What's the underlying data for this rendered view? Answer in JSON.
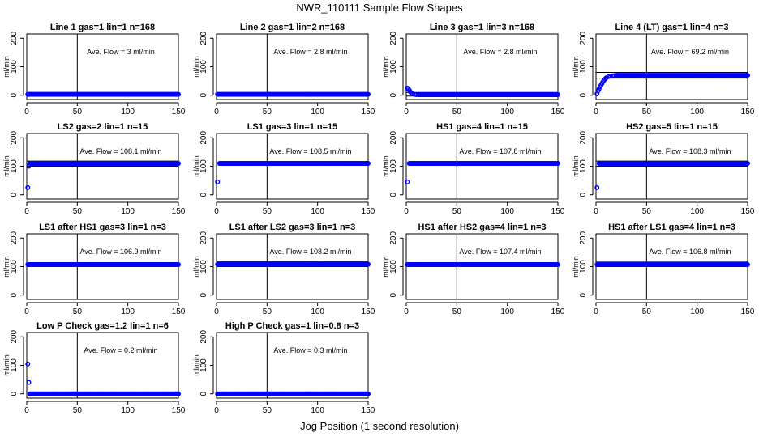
{
  "figure": {
    "title": "NWR_110111  Sample Flow Shapes",
    "xlabel": "Jog Position (1 second resolution)"
  },
  "colors": {
    "points": "#0000ff",
    "axes": "#000000"
  },
  "chart_data": [
    {
      "type": "scatter",
      "title": "Line 1 gas=1 lin=1 n=168",
      "annotation": "Ave. Flow =  3  ml/min",
      "xlabel": "",
      "ylabel": "ml/min",
      "xlim": [
        0,
        150
      ],
      "ylim": [
        -15,
        215
      ],
      "xticks": [
        0,
        50,
        100,
        150
      ],
      "yticks": [
        0,
        100,
        200
      ],
      "vline": 50,
      "hlines": [],
      "series": [
        {
          "name": "",
          "x": [
            1,
            150
          ],
          "y": [
            3,
            3
          ]
        }
      ]
    },
    {
      "type": "scatter",
      "title": "Line 2 gas=1 lin=2 n=168",
      "annotation": "Ave. Flow =  2.8  ml/min",
      "xlabel": "",
      "ylabel": "ml/min",
      "xlim": [
        0,
        150
      ],
      "ylim": [
        -15,
        215
      ],
      "xticks": [
        0,
        50,
        100,
        150
      ],
      "yticks": [
        0,
        100,
        200
      ],
      "vline": 50,
      "hlines": [],
      "series": [
        {
          "name": "",
          "x": [
            1,
            150
          ],
          "y": [
            3,
            3
          ]
        }
      ]
    },
    {
      "type": "scatter",
      "title": "Line 3 gas=1 lin=3 n=168",
      "annotation": "Ave. Flow =  2.8  ml/min",
      "xlabel": "",
      "ylabel": "ml/min",
      "xlim": [
        0,
        150
      ],
      "ylim": [
        -15,
        215
      ],
      "xticks": [
        0,
        50,
        100,
        150
      ],
      "yticks": [
        0,
        100,
        200
      ],
      "vline": 50,
      "hlines": [
        10,
        -3
      ],
      "series": [
        {
          "name": "",
          "x": [
            1,
            2,
            3,
            4,
            5,
            6,
            8,
            10,
            12,
            150
          ],
          "y": [
            25,
            22,
            18,
            12,
            8,
            5,
            3,
            2,
            2,
            2
          ]
        }
      ]
    },
    {
      "type": "scatter",
      "title": "Line 4 (LT) gas=1 lin=4 n=3",
      "annotation": "Ave. Flow =  69.2  ml/min",
      "xlabel": "",
      "ylabel": "ml/min",
      "xlim": [
        0,
        150
      ],
      "ylim": [
        -15,
        215
      ],
      "xticks": [
        0,
        50,
        100,
        150
      ],
      "yticks": [
        0,
        100,
        200
      ],
      "vline": 50,
      "hlines": [
        80,
        60
      ],
      "series": [
        {
          "name": "",
          "x": [
            1,
            2,
            3,
            4,
            5,
            6,
            7,
            8,
            9,
            10,
            12,
            14,
            16,
            18,
            20,
            150
          ],
          "y": [
            5,
            15,
            22,
            30,
            36,
            42,
            48,
            53,
            57,
            61,
            65,
            67,
            68,
            69,
            70,
            70
          ]
        }
      ]
    },
    {
      "type": "scatter",
      "title": "LS2 gas=2 lin=1 n=15",
      "annotation": "Ave. Flow =  108.1  ml/min",
      "xlabel": "",
      "ylabel": "ml/min",
      "xlim": [
        0,
        150
      ],
      "ylim": [
        -15,
        215
      ],
      "xticks": [
        0,
        50,
        100,
        150
      ],
      "yticks": [
        0,
        100,
        200
      ],
      "vline": 50,
      "hlines": [
        118,
        100
      ],
      "series": [
        {
          "name": "",
          "x": [
            1,
            2,
            3,
            150
          ],
          "y": [
            25,
            100,
            110,
            110
          ]
        }
      ]
    },
    {
      "type": "scatter",
      "title": "LS1 gas=3 lin=1 n=15",
      "annotation": "Ave. Flow =  108.5  ml/min",
      "xlabel": "",
      "ylabel": "ml/min",
      "xlim": [
        0,
        150
      ],
      "ylim": [
        -15,
        215
      ],
      "xticks": [
        0,
        50,
        100,
        150
      ],
      "yticks": [
        0,
        100,
        200
      ],
      "vline": 50,
      "hlines": [],
      "series": [
        {
          "name": "",
          "x": [
            1,
            3,
            150
          ],
          "y": [
            45,
            110,
            110
          ]
        }
      ]
    },
    {
      "type": "scatter",
      "title": "HS1 gas=4 lin=1 n=15",
      "annotation": "Ave. Flow =  107.8  ml/min",
      "xlabel": "",
      "ylabel": "ml/min",
      "xlim": [
        0,
        150
      ],
      "ylim": [
        -15,
        215
      ],
      "xticks": [
        0,
        50,
        100,
        150
      ],
      "yticks": [
        0,
        100,
        200
      ],
      "vline": 50,
      "hlines": [],
      "series": [
        {
          "name": "",
          "x": [
            1,
            3,
            150
          ],
          "y": [
            45,
            110,
            110
          ]
        }
      ]
    },
    {
      "type": "scatter",
      "title": "HS2 gas=5 lin=1 n=15",
      "annotation": "Ave. Flow =  108.3  ml/min",
      "xlabel": "",
      "ylabel": "ml/min",
      "xlim": [
        0,
        150
      ],
      "ylim": [
        -15,
        215
      ],
      "xticks": [
        0,
        50,
        100,
        150
      ],
      "yticks": [
        0,
        100,
        200
      ],
      "vline": 50,
      "hlines": [
        118,
        100
      ],
      "series": [
        {
          "name": "",
          "x": [
            1,
            3,
            150
          ],
          "y": [
            25,
            110,
            110
          ]
        }
      ]
    },
    {
      "type": "scatter",
      "title": "LS1 after HS1 gas=3 lin=1 n=3",
      "annotation": "Ave. Flow =  106.9  ml/min",
      "xlabel": "",
      "ylabel": "ml/min",
      "xlim": [
        0,
        150
      ],
      "ylim": [
        -15,
        215
      ],
      "xticks": [
        0,
        50,
        100,
        150
      ],
      "yticks": [
        0,
        100,
        200
      ],
      "vline": 50,
      "hlines": [],
      "series": [
        {
          "name": "",
          "x": [
            1,
            150
          ],
          "y": [
            107,
            107
          ]
        }
      ]
    },
    {
      "type": "scatter",
      "title": "LS1 after LS2 gas=3 lin=1 n=3",
      "annotation": "Ave. Flow =  108.2  ml/min",
      "xlabel": "",
      "ylabel": "ml/min",
      "xlim": [
        0,
        150
      ],
      "ylim": [
        -15,
        215
      ],
      "xticks": [
        0,
        50,
        100,
        150
      ],
      "yticks": [
        0,
        100,
        200
      ],
      "vline": 50,
      "hlines": [
        118,
        100
      ],
      "series": [
        {
          "name": "",
          "x": [
            1,
            150
          ],
          "y": [
            108,
            108
          ]
        }
      ]
    },
    {
      "type": "scatter",
      "title": "HS1 after HS2 gas=4 lin=1 n=3",
      "annotation": "Ave. Flow =  107.4  ml/min",
      "xlabel": "",
      "ylabel": "ml/min",
      "xlim": [
        0,
        150
      ],
      "ylim": [
        -15,
        215
      ],
      "xticks": [
        0,
        50,
        100,
        150
      ],
      "yticks": [
        0,
        100,
        200
      ],
      "vline": 50,
      "hlines": [],
      "series": [
        {
          "name": "",
          "x": [
            1,
            150
          ],
          "y": [
            107,
            107
          ]
        }
      ]
    },
    {
      "type": "scatter",
      "title": "HS1 after LS1 gas=4 lin=1 n=3",
      "annotation": "Ave. Flow =  106.8  ml/min",
      "xlabel": "",
      "ylabel": "ml/min",
      "xlim": [
        0,
        150
      ],
      "ylim": [
        -15,
        215
      ],
      "xticks": [
        0,
        50,
        100,
        150
      ],
      "yticks": [
        0,
        100,
        200
      ],
      "vline": 50,
      "hlines": [
        118,
        100
      ],
      "series": [
        {
          "name": "",
          "x": [
            1,
            150
          ],
          "y": [
            107,
            107
          ]
        }
      ]
    },
    {
      "type": "scatter",
      "title": "Low P Check gas=1.2 lin=1 n=6",
      "annotation": "Ave. Flow =  0.2  ml/min",
      "xlabel": "",
      "ylabel": "ml/min",
      "xlim": [
        0,
        150
      ],
      "ylim": [
        -15,
        215
      ],
      "xticks": [
        0,
        50,
        100,
        150
      ],
      "yticks": [
        0,
        100,
        200
      ],
      "vline": 50,
      "hlines": [],
      "series": [
        {
          "name": "",
          "x": [
            1,
            2,
            3,
            150
          ],
          "y": [
            105,
            40,
            0,
            0
          ]
        }
      ]
    },
    {
      "type": "scatter",
      "title": "High P Check gas=1 lin=0.8 n=3",
      "annotation": "Ave. Flow =  0.3  ml/min",
      "xlabel": "",
      "ylabel": "ml/min",
      "xlim": [
        0,
        150
      ],
      "ylim": [
        -15,
        215
      ],
      "xticks": [
        0,
        50,
        100,
        150
      ],
      "yticks": [
        0,
        100,
        200
      ],
      "vline": 50,
      "hlines": [],
      "series": [
        {
          "name": "",
          "x": [
            1,
            150
          ],
          "y": [
            0,
            0
          ]
        }
      ]
    }
  ]
}
